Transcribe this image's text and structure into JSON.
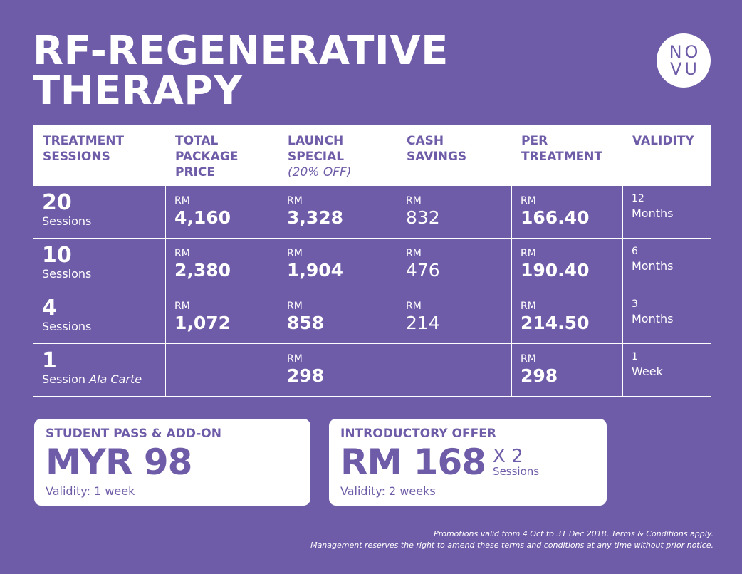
{
  "title": {
    "line1": "RF-REGENERATIVE",
    "line2": "THERAPY"
  },
  "logo": {
    "line1": "NO",
    "line2": "VU"
  },
  "table": {
    "headers": [
      {
        "label": "TREATMENT SESSIONS",
        "sub": ""
      },
      {
        "label": "TOTAL PACKAGE PRICE",
        "sub": ""
      },
      {
        "label": "LAUNCH SPECIAL",
        "sub": "(20% OFF)"
      },
      {
        "label": "CASH SAVINGS",
        "sub": ""
      },
      {
        "label": "PER TREATMENT",
        "sub": ""
      },
      {
        "label": "VALIDITY",
        "sub": ""
      }
    ],
    "rows": [
      {
        "count": "20",
        "label": "Sessions",
        "label_extra": "",
        "total_rm": "RM",
        "total": "4,160",
        "launch_rm": "RM",
        "launch": "3,328",
        "savings_rm": "RM",
        "savings": "832",
        "per_rm": "RM",
        "per": "166.40",
        "validity_num": "12",
        "validity_unit": "Months"
      },
      {
        "count": "10",
        "label": "Sessions",
        "label_extra": "",
        "total_rm": "RM",
        "total": "2,380",
        "launch_rm": "RM",
        "launch": "1,904",
        "savings_rm": "RM",
        "savings": "476",
        "per_rm": "RM",
        "per": "190.40",
        "validity_num": "6",
        "validity_unit": "Months"
      },
      {
        "count": "4",
        "label": "Sessions",
        "label_extra": "",
        "total_rm": "RM",
        "total": "1,072",
        "launch_rm": "RM",
        "launch": "858",
        "savings_rm": "RM",
        "savings": "214",
        "per_rm": "RM",
        "per": "214.50",
        "validity_num": "3",
        "validity_unit": "Months"
      },
      {
        "count": "1",
        "label": "Session",
        "label_extra": "Ala Carte",
        "total_rm": "",
        "total": "",
        "launch_rm": "RM",
        "launch": "298",
        "savings_rm": "",
        "savings": "",
        "per_rm": "RM",
        "per": "298",
        "validity_num": "1",
        "validity_unit": "Week"
      }
    ]
  },
  "student_card": {
    "title": "STUDENT PASS & ADD-ON",
    "price": "MYR 98",
    "validity": "Validity: 1 week"
  },
  "intro_card": {
    "title": "INTRODUCTORY OFFER",
    "price": "RM 168",
    "multiplier": "X 2",
    "multiplier_label": "Sessions",
    "validity": "Validity: 2 weeks"
  },
  "footnote": {
    "line1": "Promotions valid from 4 Oct to 31 Dec 2018. Terms & Conditions apply.",
    "line2": "Management reserves the right to amend these terms and conditions at any time without prior notice."
  },
  "colors": {
    "background": "#6f5ca8",
    "text": "#ffffff",
    "card": "#ffffff"
  }
}
